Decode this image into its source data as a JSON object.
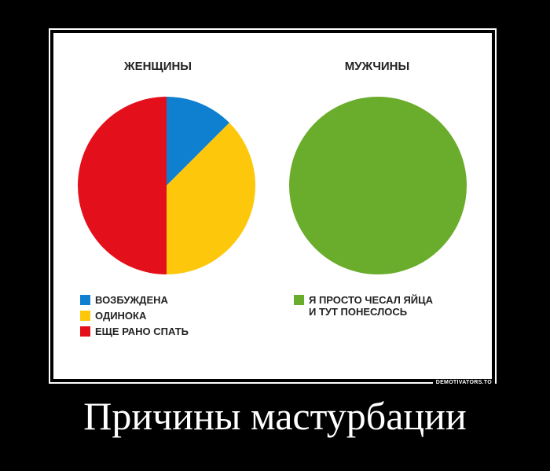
{
  "chart_data": [
    {
      "type": "pie",
      "title": "ЖЕНЩИНЫ",
      "slices": [
        {
          "label": "ВОЗБУЖДЕНА",
          "value": 12.5,
          "color": "#0f7fd0"
        },
        {
          "label": "ОДИНОКА",
          "value": 37.5,
          "color": "#fdc80b"
        },
        {
          "label": "ЕЩЕ РАНО СПАТЬ",
          "value": 50,
          "color": "#e3101b"
        }
      ]
    },
    {
      "type": "pie",
      "title": "МУЖЧИНЫ",
      "slices": [
        {
          "label": "Я ПРОСТО ЧЕСАЛ ЯЙЦА И ТУТ ПОНЕСЛОСЬ",
          "label_lines": [
            "Я ПРОСТО ЧЕСАЛ ЯЙЦА",
            "И ТУТ ПОНЕСЛОСЬ"
          ],
          "value": 100,
          "color": "#6aac2b"
        }
      ]
    }
  ],
  "watermark": "DEMOTIVATORS.TO",
  "caption": "Причины мастурбации"
}
